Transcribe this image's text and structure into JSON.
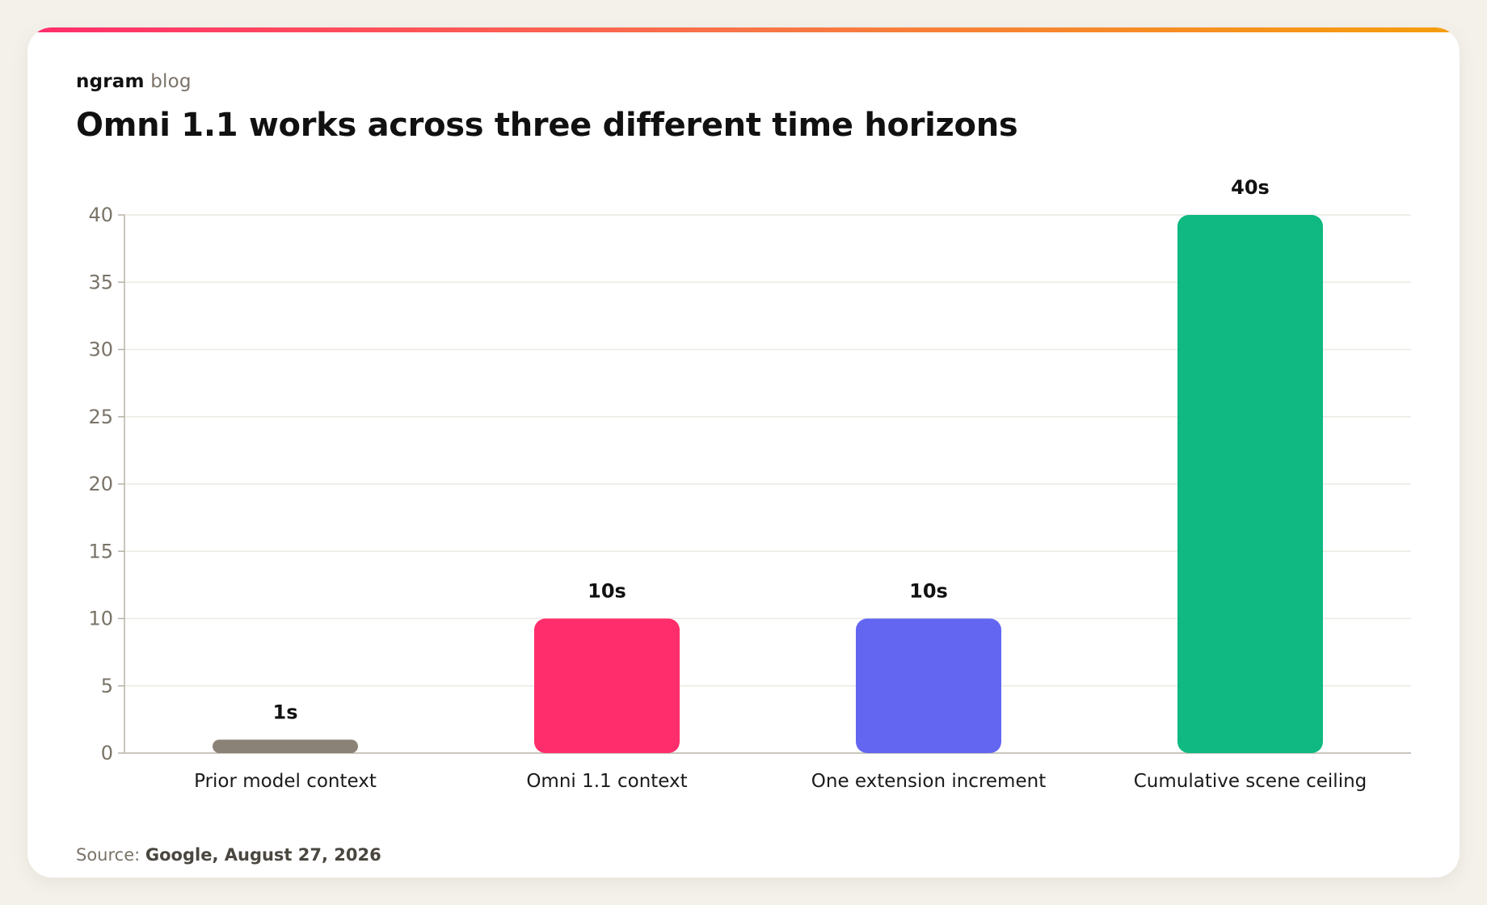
{
  "brand": {
    "name": "ngram",
    "suffix": "blog"
  },
  "title": "Omni 1.1 works across three different time horizons",
  "source": {
    "label": "Source:",
    "text": "Google, August 27, 2026"
  },
  "colors": {
    "accent_start": "#ff2d6c",
    "accent_end": "#f59e0b",
    "grid": "#ece9e3",
    "axis": "#b9b3a8",
    "tick_text": "#7a7368"
  },
  "chart_data": {
    "type": "bar",
    "title": "",
    "xlabel": "",
    "ylabel": "",
    "ylim": [
      0,
      40
    ],
    "yticks": [
      0,
      5,
      10,
      15,
      20,
      25,
      30,
      35,
      40
    ],
    "grid": true,
    "legend": "none",
    "categories": [
      "Prior model context",
      "Omni 1.1 context",
      "One extension increment",
      "Cumulative scene ceiling"
    ],
    "values": [
      1,
      10,
      10,
      40
    ],
    "data_labels": [
      "1s",
      "10s",
      "10s",
      "40s"
    ],
    "bar_colors": [
      "#8a8277",
      "#ff2d6c",
      "#6366f1",
      "#10b981"
    ]
  }
}
